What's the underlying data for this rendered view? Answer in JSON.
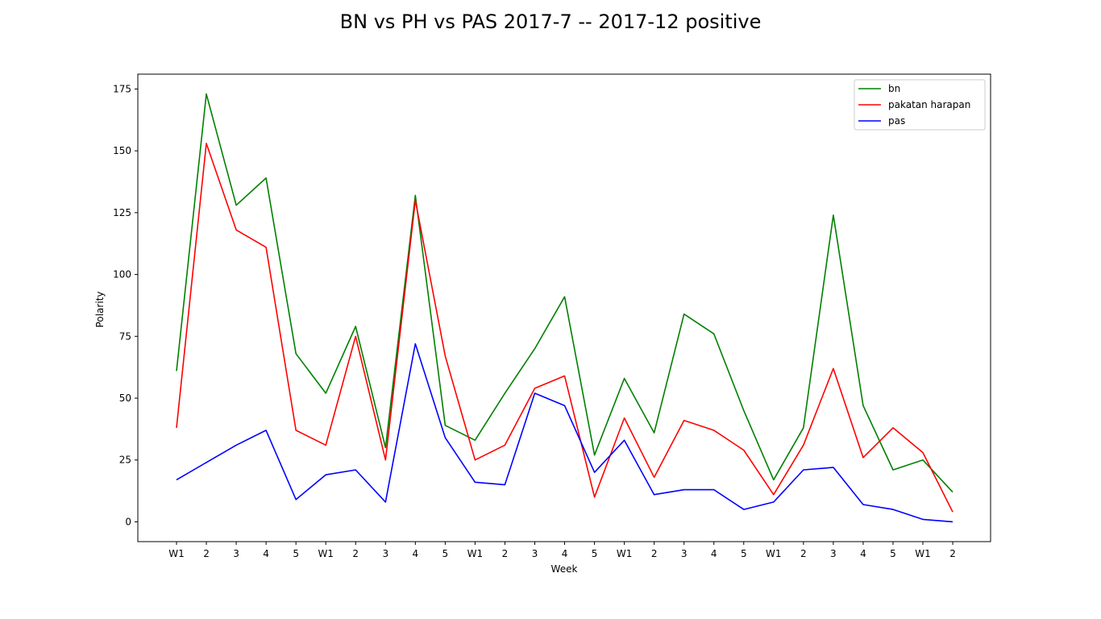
{
  "chart_data": {
    "type": "line",
    "title": "BN vs PH vs PAS 2017-7 -- 2017-12 positive",
    "xlabel": "Week",
    "ylabel": "Polarity",
    "categories": [
      "W1",
      "2",
      "3",
      "4",
      "5",
      "W1",
      "2",
      "3",
      "4",
      "5",
      "W1",
      "2",
      "3",
      "4",
      "5",
      "W1",
      "2",
      "3",
      "4",
      "5",
      "W1",
      "2",
      "3",
      "4",
      "5",
      "W1",
      "2"
    ],
    "ylim": [
      -8,
      181
    ],
    "yticks": [
      0,
      25,
      50,
      75,
      100,
      125,
      150,
      175
    ],
    "legend_position": "top-right",
    "grid": false,
    "series": [
      {
        "name": "bn",
        "color": "#008000",
        "values": [
          61,
          173,
          128,
          139,
          68,
          52,
          79,
          30,
          132,
          39,
          33,
          52,
          70,
          91,
          27,
          58,
          36,
          84,
          76,
          45,
          17,
          38,
          124,
          47,
          21,
          25,
          12
        ]
      },
      {
        "name": "pakatan harapan",
        "color": "#ff0000",
        "values": [
          38,
          153,
          118,
          111,
          37,
          31,
          75,
          25,
          130,
          67,
          25,
          31,
          54,
          59,
          10,
          42,
          18,
          41,
          37,
          29,
          11,
          31,
          62,
          26,
          38,
          28,
          4
        ]
      },
      {
        "name": "pas",
        "color": "#0000ff",
        "values": [
          17,
          24,
          31,
          37,
          9,
          19,
          21,
          8,
          72,
          34,
          16,
          15,
          52,
          47,
          20,
          33,
          11,
          13,
          13,
          5,
          8,
          21,
          22,
          7,
          5,
          1,
          0
        ]
      }
    ]
  }
}
